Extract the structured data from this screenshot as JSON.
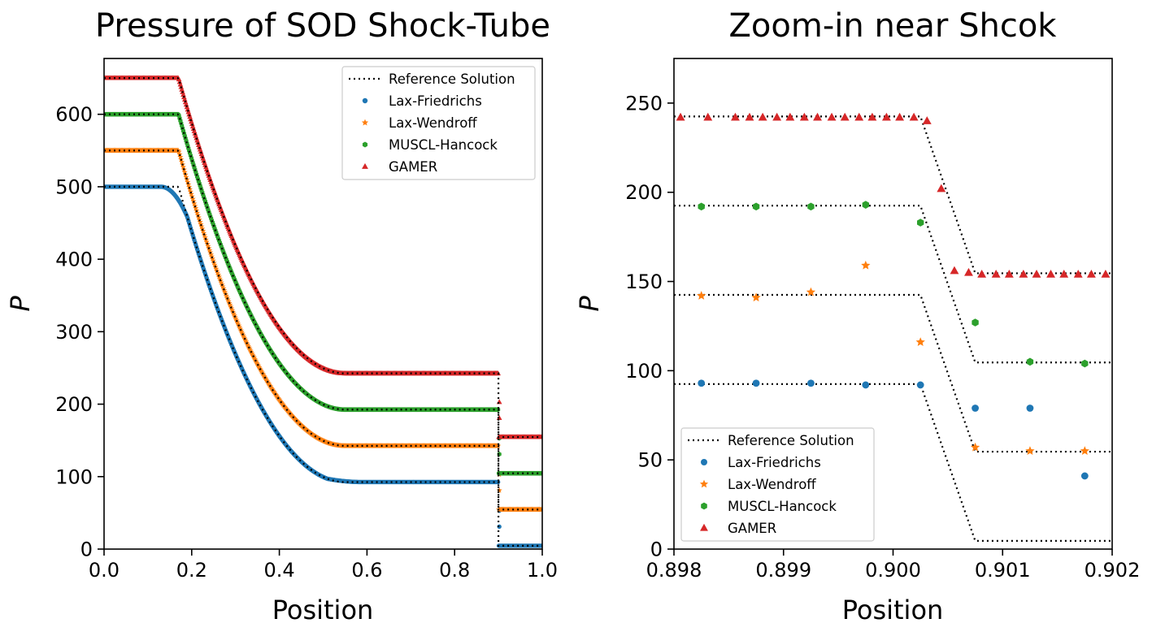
{
  "colors": {
    "lax_friedrichs": "#1f77b4",
    "lax_wendroff": "#ff7f0e",
    "muscl_hancock": "#2ca02c",
    "gamer": "#d62728",
    "reference": "#000000"
  },
  "chart_data": [
    {
      "type": "scatter",
      "title": "Pressure of SOD Shock-Tube",
      "xlabel": "Position",
      "ylabel": "P",
      "xlim": [
        0.0,
        1.0
      ],
      "ylim": [
        0,
        677
      ],
      "xticks": [
        0.0,
        0.2,
        0.4,
        0.6,
        0.8,
        1.0
      ],
      "xtick_labels": [
        "0.0",
        "0.2",
        "0.4",
        "0.6",
        "0.8",
        "1.0"
      ],
      "yticks": [
        0,
        100,
        200,
        300,
        400,
        500,
        600
      ],
      "ytick_labels": [
        "0",
        "100",
        "200",
        "300",
        "400",
        "500",
        "600"
      ],
      "legend_position": "top-right",
      "legend": [
        "Reference Solution",
        "Lax-Friedrichs",
        "Lax-Wendroff",
        "MUSCL-Hancock",
        "GAMER"
      ],
      "series": [
        {
          "name": "Lax-Friedrichs",
          "marker": "circle",
          "offset": 0,
          "regions": {
            "left_state": 500,
            "rarefaction_head_x": 0.17,
            "rarefaction_tail_x": 0.55,
            "plateau": 92.5,
            "shock_x": 0.9,
            "right_state": 4.6
          }
        },
        {
          "name": "Lax-Wendroff",
          "marker": "star",
          "offset": 50,
          "regions": {
            "left_state": 550,
            "rarefaction_head_x": 0.17,
            "rarefaction_tail_x": 0.55,
            "plateau": 142.5,
            "shock_x": 0.9,
            "right_state": 54.6
          }
        },
        {
          "name": "MUSCL-Hancock",
          "marker": "hexagon",
          "offset": 100,
          "regions": {
            "left_state": 600,
            "rarefaction_head_x": 0.17,
            "rarefaction_tail_x": 0.55,
            "plateau": 192.5,
            "shock_x": 0.9,
            "right_state": 104.6
          }
        },
        {
          "name": "GAMER",
          "marker": "triangle",
          "offset": 150,
          "regions": {
            "left_state": 650,
            "rarefaction_head_x": 0.17,
            "rarefaction_tail_x": 0.55,
            "plateau": 242.5,
            "shock_x": 0.9,
            "right_state": 154.6
          }
        }
      ]
    },
    {
      "type": "scatter",
      "title": "Zoom-in near Shcok",
      "xlabel": "Position",
      "ylabel": "P",
      "xlim": [
        0.898,
        0.902
      ],
      "ylim": [
        0,
        275
      ],
      "xticks": [
        0.898,
        0.899,
        0.9,
        0.901,
        0.902
      ],
      "xtick_labels": [
        "0.898",
        "0.899",
        "0.900",
        "0.901",
        "0.902"
      ],
      "yticks": [
        0,
        50,
        100,
        150,
        200,
        250
      ],
      "ytick_labels": [
        "0",
        "50",
        "100",
        "150",
        "200",
        "250"
      ],
      "legend_position": "bottom-left",
      "legend": [
        "Reference Solution",
        "Lax-Friedrichs",
        "Lax-Wendroff",
        "MUSCL-Hancock",
        "GAMER"
      ],
      "reference": [
        {
          "name": "Lax-Friedrichs",
          "x": [
            0.898,
            0.90025,
            0.90075,
            0.902
          ],
          "y": [
            92.5,
            92.5,
            4.6,
            4.6
          ]
        },
        {
          "name": "Lax-Wendroff",
          "x": [
            0.898,
            0.90025,
            0.90075,
            0.902
          ],
          "y": [
            142.5,
            142.5,
            54.6,
            54.6
          ]
        },
        {
          "name": "MUSCL-Hancock",
          "x": [
            0.898,
            0.90025,
            0.90075,
            0.902
          ],
          "y": [
            192.5,
            192.5,
            104.6,
            104.6
          ]
        },
        {
          "name": "GAMER",
          "x": [
            0.898,
            0.90025,
            0.90075,
            0.902
          ],
          "y": [
            242.5,
            242.5,
            154.6,
            154.6
          ]
        }
      ],
      "series": [
        {
          "name": "Lax-Friedrichs",
          "marker": "circle",
          "x": [
            0.89825,
            0.89875,
            0.89925,
            0.89975,
            0.90025,
            0.90075,
            0.90125,
            0.90175
          ],
          "y": [
            93,
            93,
            93,
            92,
            92,
            79,
            79,
            41
          ]
        },
        {
          "name": "Lax-Wendroff",
          "marker": "star",
          "x": [
            0.89825,
            0.89875,
            0.89925,
            0.89975,
            0.90025,
            0.90075,
            0.90125,
            0.90175
          ],
          "y": [
            142,
            141,
            144,
            159,
            116,
            57,
            55,
            55
          ]
        },
        {
          "name": "MUSCL-Hancock",
          "marker": "hexagon",
          "x": [
            0.89825,
            0.89875,
            0.89925,
            0.89975,
            0.90025,
            0.90075,
            0.90125,
            0.90175
          ],
          "y": [
            192,
            192,
            192,
            193,
            183,
            127,
            105,
            104
          ]
        },
        {
          "name": "GAMER",
          "marker": "triangle",
          "x": [
            0.89806,
            0.89831,
            0.89856,
            0.89869,
            0.89881,
            0.89894,
            0.89906,
            0.89919,
            0.89931,
            0.89944,
            0.89956,
            0.89969,
            0.89981,
            0.89994,
            0.90006,
            0.90019,
            0.90031,
            0.90044,
            0.90056,
            0.90069,
            0.90081,
            0.90094,
            0.90106,
            0.90119,
            0.90131,
            0.90144,
            0.90156,
            0.90169,
            0.90181,
            0.90194
          ],
          "y": [
            242,
            242,
            242,
            242,
            242,
            242,
            242,
            242,
            242,
            242,
            242,
            242,
            242,
            242,
            242,
            242,
            240,
            202,
            156,
            155,
            154,
            154,
            154,
            154,
            154,
            154,
            154,
            154,
            154,
            154
          ]
        }
      ]
    }
  ]
}
